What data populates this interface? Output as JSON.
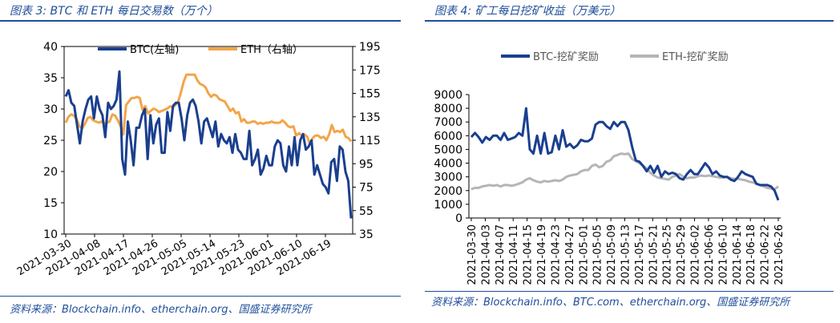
{
  "left": {
    "title": "图表 3:  BTC 和 ETH 每日交易数（万个）",
    "source": "资料来源：Blockchain.info、etherchain.org、国盛证券研究所",
    "chart_data": {
      "type": "line",
      "title": "BTC 和 ETH 每日交易数（万个）",
      "y_left": {
        "min": 10,
        "max": 40,
        "ticks": [
          "10",
          "15",
          "20",
          "25",
          "30",
          "35",
          "40"
        ]
      },
      "y_right": {
        "min": 35,
        "max": 195,
        "ticks": [
          "35",
          "55",
          "75",
          "95",
          "115",
          "135",
          "155",
          "175",
          "195"
        ]
      },
      "x_tick_labels": [
        "2021-03-30",
        "2021-04-08",
        "2021-04-17",
        "2021-04-26",
        "2021-05-05",
        "2021-05-14",
        "2021-05-23",
        "2021-06-01",
        "2021-06-10",
        "2021-06-19"
      ],
      "series": [
        {
          "name": "BTC(左轴)",
          "axis": "left",
          "color": "#1a3f8f",
          "values": [
            32,
            33,
            31,
            30.5,
            27.5,
            24.5,
            28,
            30,
            31.5,
            32,
            28.5,
            32,
            30,
            29,
            25.5,
            31,
            30,
            30.5,
            31.5,
            36,
            22,
            19.5,
            28,
            25,
            21,
            27,
            27,
            29,
            30,
            22,
            29,
            24.5,
            27.5,
            28.5,
            23,
            23,
            29.5,
            26.5,
            30.5,
            31,
            31,
            28.5,
            25,
            29,
            31,
            31.5,
            30.5,
            28,
            24.5,
            28,
            28.5,
            27,
            25.5,
            28,
            24,
            26,
            25,
            24.5,
            25.5,
            23,
            26,
            23.5,
            23,
            22,
            22,
            26.5,
            21,
            22,
            23.5,
            19.5,
            20.5,
            22.5,
            21,
            21,
            24,
            25,
            24.5,
            21,
            20,
            24,
            21,
            25.5,
            21,
            25,
            26,
            23.5,
            24,
            25,
            19.5,
            21,
            19.5,
            18,
            17.5,
            16.5,
            21.5,
            22,
            18.5,
            24,
            23.5,
            20,
            18.5,
            12.5
          ]
        },
        {
          "name": "ETH（右轴）",
          "axis": "right",
          "color": "#f2a54a",
          "values": [
            130,
            135,
            137,
            136,
            133,
            127,
            125,
            129,
            134,
            135,
            132,
            131,
            130,
            131,
            129,
            130,
            131,
            137,
            136,
            132,
            127,
            120,
            145,
            148,
            151,
            151,
            152,
            151,
            141,
            144,
            138,
            140,
            142,
            141,
            139,
            140,
            141,
            142,
            144,
            143,
            145,
            148,
            156,
            165,
            171,
            171,
            171,
            171,
            166,
            163,
            162,
            160,
            155,
            152,
            154,
            153,
            150,
            149,
            148,
            144,
            140,
            142,
            138,
            139,
            131,
            133,
            130,
            130,
            131,
            131,
            129,
            130,
            129,
            130,
            130,
            131,
            130,
            130,
            130,
            132,
            130,
            127,
            126,
            127,
            119,
            121,
            119,
            120,
            118,
            112,
            117,
            119,
            119,
            117,
            118,
            115,
            120,
            128,
            122,
            123,
            122,
            124,
            118,
            117,
            114
          ]
        }
      ]
    }
  },
  "right": {
    "title": "图表 4:  矿工每日挖矿收益（万美元）",
    "source": "资料来源：Blockchain.info、BTC.com、etherchain.org、国盛证券研究所",
    "chart_data": {
      "type": "line",
      "title": "矿工每日挖矿收益（万美元）",
      "y": {
        "min": 0,
        "max": 9000,
        "ticks": [
          "0",
          "1000",
          "2000",
          "3000",
          "4000",
          "5000",
          "6000",
          "7000",
          "8000",
          "9000"
        ]
      },
      "x_tick_labels": [
        "2021-03-30",
        "2021-04-03",
        "2021-04-07",
        "2021-04-11",
        "2021-04-15",
        "2021-04-19",
        "2021-04-23",
        "2021-04-27",
        "2021-05-01",
        "2021-05-05",
        "2021-05-09",
        "2021-05-13",
        "2021-05-17",
        "2021-05-21",
        "2021-05-25",
        "2021-05-29",
        "2021-06-02",
        "2021-06-06",
        "2021-06-10",
        "2021-06-14",
        "2021-06-18",
        "2021-06-22",
        "2021-06-26"
      ],
      "series": [
        {
          "name": "BTC-挖矿奖励",
          "color": "#1a3f8f",
          "values": [
            5900,
            6200,
            5900,
            5500,
            5900,
            5700,
            6000,
            6000,
            5700,
            6200,
            5700,
            5800,
            5900,
            6200,
            6000,
            8000,
            5000,
            4700,
            6000,
            4700,
            6200,
            4700,
            4800,
            6000,
            5000,
            6400,
            5200,
            5400,
            5100,
            5300,
            5700,
            5600,
            5600,
            5800,
            6800,
            7000,
            7000,
            6700,
            6500,
            7000,
            6700,
            7000,
            7000,
            6400,
            5200,
            4200,
            4100,
            3800,
            3400,
            3800,
            3300,
            3800,
            3000,
            3400,
            3200,
            3300,
            3200,
            2900,
            2800,
            3200,
            3500,
            3200,
            3200,
            3600,
            4000,
            3700,
            3200,
            3400,
            3100,
            3000,
            3000,
            2800,
            2700,
            3000,
            3400,
            3200,
            3100,
            3000,
            2500,
            2400,
            2400,
            2400,
            2300,
            2000,
            1300
          ]
        },
        {
          "name": "ETH-挖矿奖励",
          "color": "#b5b5b5",
          "values": [
            2100,
            2200,
            2200,
            2300,
            2350,
            2400,
            2350,
            2400,
            2300,
            2400,
            2400,
            2350,
            2400,
            2500,
            2600,
            2800,
            2900,
            2750,
            2650,
            2600,
            2700,
            2650,
            2700,
            2750,
            2700,
            2800,
            3000,
            3100,
            3150,
            3200,
            3400,
            3500,
            3500,
            3800,
            3900,
            3700,
            3800,
            4100,
            4200,
            4500,
            4600,
            4700,
            4650,
            4700,
            4300,
            4150,
            4000,
            3800,
            3600,
            3300,
            3100,
            2950,
            2900,
            2850,
            2800,
            3000,
            3100,
            3200,
            3000,
            2900,
            2950,
            2950,
            3050,
            3100,
            3050,
            3100,
            3050,
            3000,
            2950,
            2950,
            3000,
            2900,
            2850,
            2850,
            2800,
            2750,
            2650,
            2600,
            2500,
            2400,
            2300,
            2200,
            2150,
            2100,
            2300
          ]
        }
      ]
    }
  }
}
